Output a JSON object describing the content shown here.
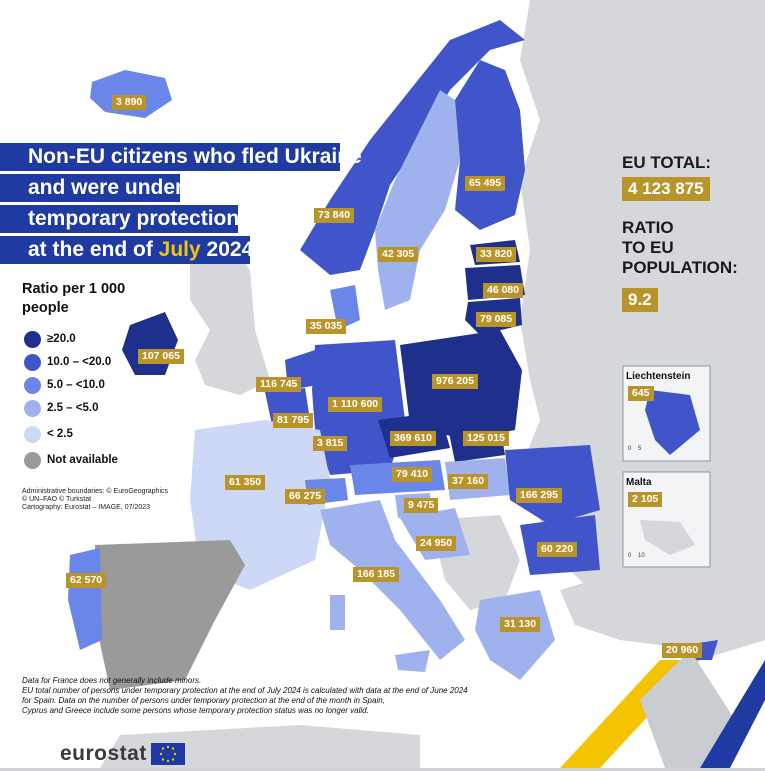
{
  "title": {
    "line1": "Non-EU citizens who fled Ukraine",
    "line2": "and were under",
    "line3": "temporary protection",
    "line4_pre": "at the end of ",
    "line4_month": "July",
    "line4_year": " 2024"
  },
  "legend": {
    "title": "Ratio per 1 000 people",
    "items": [
      {
        "label": "≥20.0",
        "color": "#1f2f8c"
      },
      {
        "label": "10.0 – <20.0",
        "color": "#3f55c9"
      },
      {
        "label": "5.0 – <10.0",
        "color": "#6a86e8"
      },
      {
        "label": "2.5 – <5.0",
        "color": "#9fb2ee"
      },
      {
        "label": "< 2.5",
        "color": "#cdd7f6"
      },
      {
        "label": "Not available",
        "color": "#9a9a9a"
      }
    ]
  },
  "credits": {
    "line1": "Administrative boundaries: © EuroGeographics",
    "line2": "© UN–FAO © Turkstat",
    "line3": "Cartography: Eurostat – IMAGE, 07/2023"
  },
  "eu_total": {
    "label": "EU TOTAL:",
    "value": "4 123 875",
    "ratio_label1": "RATIO",
    "ratio_label2": "TO EU",
    "ratio_label3": "POPULATION:",
    "ratio_value": "9.2"
  },
  "insets": {
    "liechtenstein": {
      "name": "Liechtenstein",
      "value": "645",
      "scale": "0    5"
    },
    "malta": {
      "name": "Malta",
      "value": "2 105",
      "scale": "0    10"
    }
  },
  "countries": [
    {
      "name": "Iceland",
      "value": "3 890"
    },
    {
      "name": "Finland",
      "value": "65 495"
    },
    {
      "name": "Norway",
      "value": "73 840"
    },
    {
      "name": "Sweden",
      "value": "42 305"
    },
    {
      "name": "Estonia",
      "value": "33 820"
    },
    {
      "name": "Latvia",
      "value": "46 080"
    },
    {
      "name": "Lithuania",
      "value": "79 085"
    },
    {
      "name": "Denmark",
      "value": "35 035"
    },
    {
      "name": "Ireland",
      "value": "107 065"
    },
    {
      "name": "Netherlands",
      "value": "116 745"
    },
    {
      "name": "Germany",
      "value": "1 110 600"
    },
    {
      "name": "Poland",
      "value": "976 205"
    },
    {
      "name": "Belgium",
      "value": "81 795"
    },
    {
      "name": "Luxembourg",
      "value": "3 815"
    },
    {
      "name": "Czechia",
      "value": "369 610"
    },
    {
      "name": "Slovakia",
      "value": "125 015"
    },
    {
      "name": "France",
      "value": "61 350"
    },
    {
      "name": "Switzerland",
      "value": "66 275"
    },
    {
      "name": "Austria",
      "value": "79 410"
    },
    {
      "name": "Hungary",
      "value": "37 160"
    },
    {
      "name": "Romania",
      "value": "166 295"
    },
    {
      "name": "Slovenia",
      "value": "9 475"
    },
    {
      "name": "Croatia",
      "value": "24 950"
    },
    {
      "name": "Bulgaria",
      "value": "60 220"
    },
    {
      "name": "Italy",
      "value": "166 185"
    },
    {
      "name": "Portugal",
      "value": "62 570"
    },
    {
      "name": "Greece",
      "value": "31 130"
    },
    {
      "name": "Cyprus",
      "value": "20 960"
    }
  ],
  "footnote": {
    "line1": "Data for France does not generally include minors.",
    "line2": "EU total number of persons under temporary protection at the end of July 2024 is calculated with data at the end of June 2024",
    "line3": "for Spain. Data on the number of persons under temporary protection at the end of the month in Spain,",
    "line4": "Cyprus and Greece include some persons whose temporary protection status was no longer valid."
  },
  "logo": {
    "text": "eurostat"
  }
}
